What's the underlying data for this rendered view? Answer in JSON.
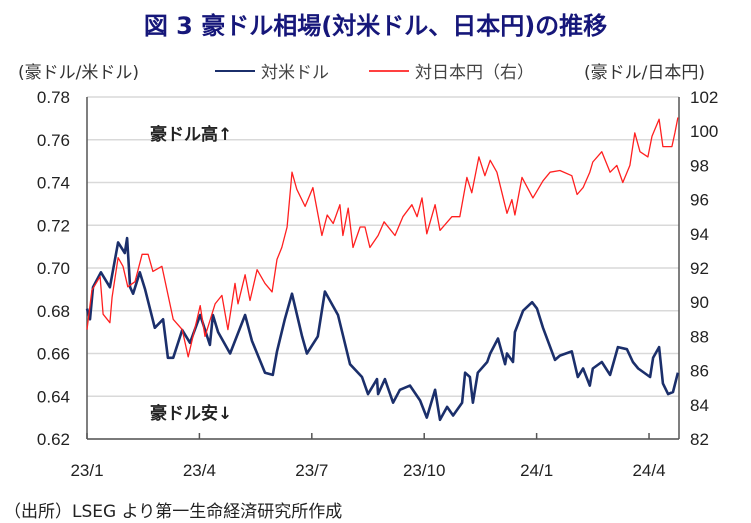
{
  "chart_data": {
    "type": "line",
    "title": "図 3  豪ドル相場(対米ドル、日本円)の推移",
    "ylabel_left": "(豪ドル/米ドル)",
    "ylabel_right": "(豪ドル/日本円)",
    "x_unit": "months since 2023-01",
    "x_ticks": [
      {
        "x": 0,
        "label": "23/1"
      },
      {
        "x": 3,
        "label": "23/4"
      },
      {
        "x": 6,
        "label": "23/7"
      },
      {
        "x": 9,
        "label": "23/10"
      },
      {
        "x": 12,
        "label": "24/1"
      },
      {
        "x": 15,
        "label": "24/4"
      }
    ],
    "xlim": [
      0,
      15.8
    ],
    "ylim_left": [
      0.62,
      0.78
    ],
    "yticks_left": [
      "0.62",
      "0.64",
      "0.66",
      "0.68",
      "0.70",
      "0.72",
      "0.74",
      "0.76",
      "0.78"
    ],
    "ylim_right": [
      82,
      102
    ],
    "yticks_right": [
      "82",
      "84",
      "86",
      "88",
      "90",
      "92",
      "94",
      "96",
      "98",
      "100",
      "102"
    ],
    "grid": true,
    "legend_position": "top",
    "annotations": [
      "豪ドル高↑",
      "豪ドル安↓"
    ],
    "series": [
      {
        "name": "対米ドル",
        "axis": "left",
        "color": "#1b2f6b",
        "x": [
          0,
          0.08,
          0.16,
          0.37,
          0.61,
          0.83,
          1.01,
          1.07,
          1.15,
          1.23,
          1.41,
          1.55,
          1.81,
          2.03,
          2.16,
          2.3,
          2.54,
          2.75,
          3.02,
          3.28,
          3.36,
          3.5,
          3.82,
          4.22,
          4.4,
          4.75,
          4.96,
          5.07,
          5.28,
          5.47,
          5.74,
          5.87,
          6.16,
          6.35,
          6.7,
          7.02,
          7.34,
          7.5,
          7.74,
          7.77,
          7.95,
          8.17,
          8.35,
          8.62,
          8.89,
          9.07,
          9.29,
          9.42,
          9.61,
          9.77,
          10.01,
          10.09,
          10.22,
          10.3,
          10.43,
          10.68,
          10.76,
          10.97,
          11.16,
          11.21,
          11.37,
          11.42,
          11.64,
          11.88,
          12.01,
          12.17,
          12.49,
          12.62,
          12.94,
          13.1,
          13.24,
          13.42,
          13.5,
          13.74,
          13.96,
          14.17,
          14.41,
          14.57,
          14.71,
          15.03,
          15.11,
          15.27,
          15.37,
          15.51,
          15.64,
          15.77
        ],
        "y": [
          0.681,
          0.676,
          0.691,
          0.698,
          0.691,
          0.712,
          0.707,
          0.714,
          0.691,
          0.688,
          0.698,
          0.69,
          0.672,
          0.676,
          0.658,
          0.658,
          0.671,
          0.665,
          0.678,
          0.664,
          0.678,
          0.67,
          0.66,
          0.678,
          0.666,
          0.651,
          0.65,
          0.661,
          0.676,
          0.688,
          0.668,
          0.66,
          0.668,
          0.689,
          0.678,
          0.655,
          0.649,
          0.641,
          0.648,
          0.641,
          0.648,
          0.637,
          0.643,
          0.645,
          0.638,
          0.63,
          0.643,
          0.629,
          0.635,
          0.631,
          0.637,
          0.651,
          0.649,
          0.637,
          0.651,
          0.656,
          0.66,
          0.667,
          0.655,
          0.66,
          0.656,
          0.67,
          0.68,
          0.684,
          0.681,
          0.672,
          0.657,
          0.659,
          0.661,
          0.649,
          0.653,
          0.645,
          0.653,
          0.656,
          0.65,
          0.663,
          0.662,
          0.656,
          0.653,
          0.649,
          0.658,
          0.663,
          0.646,
          0.641,
          0.642,
          0.651
        ]
      },
      {
        "name": "対日本円（右）",
        "axis": "right",
        "color": "#ff2020",
        "x": [
          0,
          0.13,
          0.35,
          0.43,
          0.61,
          0.67,
          0.83,
          0.96,
          1.09,
          1.28,
          1.47,
          1.63,
          1.76,
          2.0,
          2.3,
          2.54,
          2.7,
          3.02,
          3.15,
          3.42,
          3.6,
          3.76,
          3.95,
          4.03,
          4.22,
          4.35,
          4.54,
          4.75,
          4.94,
          5.07,
          5.2,
          5.34,
          5.47,
          5.6,
          5.82,
          6.03,
          6.27,
          6.41,
          6.57,
          6.75,
          6.83,
          6.97,
          7.1,
          7.29,
          7.42,
          7.55,
          7.77,
          7.93,
          8.22,
          8.43,
          8.67,
          8.81,
          8.94,
          9.07,
          9.29,
          9.42,
          9.74,
          9.95,
          10.14,
          10.27,
          10.46,
          10.62,
          10.76,
          10.94,
          11.21,
          11.34,
          11.42,
          11.61,
          11.9,
          12.17,
          12.36,
          12.62,
          12.94,
          13.08,
          13.24,
          13.42,
          13.5,
          13.74,
          13.96,
          14.14,
          14.3,
          14.49,
          14.62,
          14.76,
          14.97,
          15.08,
          15.27,
          15.37,
          15.61,
          15.69,
          15.77
        ],
        "y": [
          88.4,
          90.7,
          91.5,
          89.3,
          88.8,
          90.3,
          92.6,
          92.1,
          90.9,
          91.2,
          92.8,
          92.8,
          91.8,
          92.1,
          89.0,
          88.4,
          86.8,
          89.8,
          88.0,
          89.9,
          90.4,
          88.4,
          91.1,
          89.9,
          91.6,
          90.1,
          91.9,
          91.1,
          90.6,
          92.5,
          93.2,
          94.4,
          97.6,
          96.6,
          95.6,
          96.7,
          93.9,
          95.1,
          94.6,
          95.7,
          93.9,
          95.5,
          93.2,
          94.4,
          94.4,
          93.2,
          93.9,
          94.7,
          93.9,
          95.0,
          95.7,
          95.0,
          96.1,
          94.0,
          95.7,
          94.2,
          95.0,
          95.0,
          97.3,
          96.4,
          98.5,
          97.4,
          98.3,
          97.6,
          95.2,
          96.0,
          95.1,
          97.3,
          96.1,
          97.1,
          97.6,
          97.7,
          97.4,
          96.3,
          96.7,
          97.6,
          98.2,
          98.8,
          97.6,
          98.0,
          97.0,
          98.0,
          99.9,
          98.8,
          98.5,
          99.7,
          100.7,
          99.1,
          99.1,
          99.9,
          100.8
        ]
      }
    ]
  },
  "source": "（出所）LSEG より第一生命経済研究所作成"
}
